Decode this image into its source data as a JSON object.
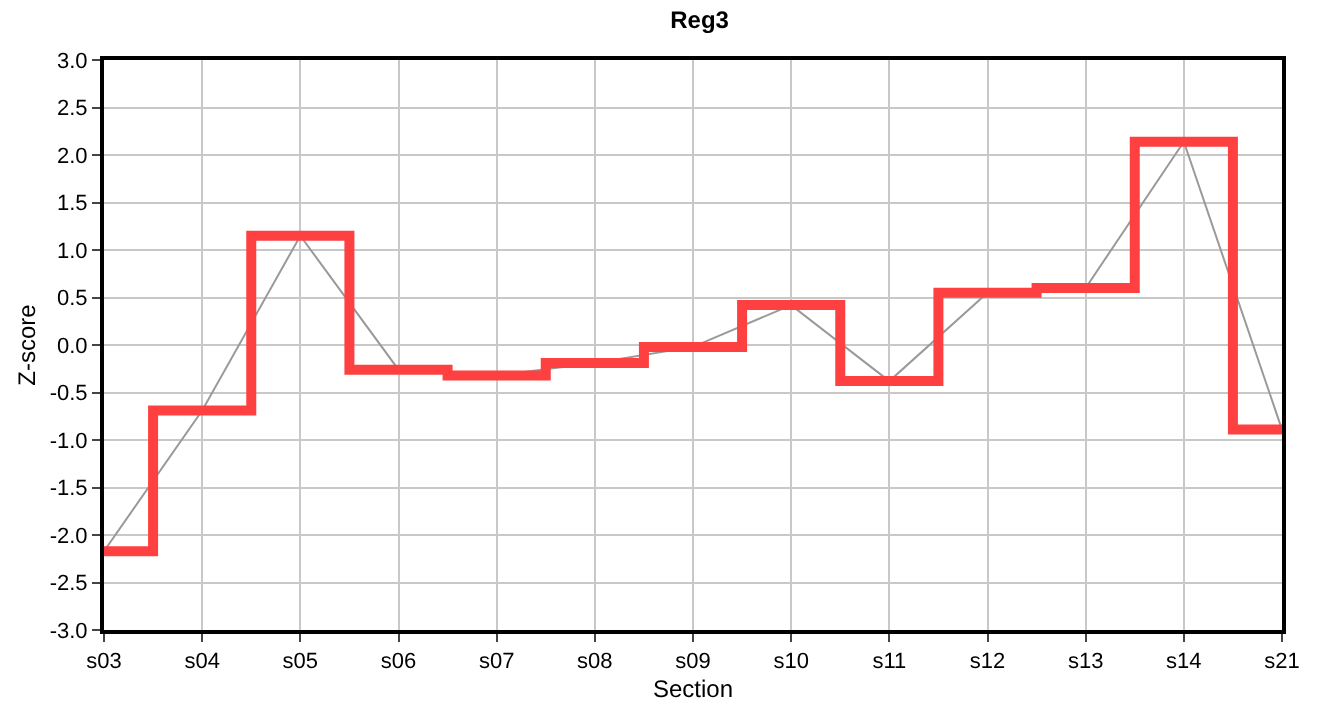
{
  "chart_data": {
    "type": "line",
    "title": "Reg3",
    "xlabel": "Section",
    "ylabel": "Z-score",
    "categories": [
      "s03",
      "s04",
      "s05",
      "s06",
      "s07",
      "s08",
      "s09",
      "s10",
      "s11",
      "s12",
      "s13",
      "s14",
      "s21"
    ],
    "series": [
      {
        "color": "#999999",
        "values": [
          -2.17,
          -0.69,
          1.15,
          -0.26,
          -0.32,
          -0.19,
          -0.02,
          0.42,
          -0.38,
          0.55,
          0.6,
          2.14,
          -0.89
        ]
      },
      {
        "type": "step",
        "color": "#ff4040",
        "values": [
          -2.17,
          -0.69,
          1.15,
          -0.26,
          -0.32,
          -0.19,
          -0.02,
          0.42,
          -0.38,
          0.55,
          0.6,
          2.14,
          -0.89
        ]
      }
    ],
    "ylim": [
      -3,
      3
    ],
    "yticks": [
      {
        "value": -3,
        "label": "-3.0"
      },
      {
        "value": -2.5,
        "label": "-2.5"
      },
      {
        "value": -2,
        "label": "-2.0"
      },
      {
        "value": -1.5,
        "label": "-1.5"
      },
      {
        "value": -1,
        "label": "-1.0"
      },
      {
        "value": -0.5,
        "label": "-0.5"
      },
      {
        "value": 0,
        "label": "0.0"
      },
      {
        "value": 0.5,
        "label": "0.5"
      },
      {
        "value": 1,
        "label": "1.0"
      },
      {
        "value": 1.5,
        "label": "1.5"
      },
      {
        "value": 2,
        "label": "2.0"
      },
      {
        "value": 2.5,
        "label": "2.5"
      },
      {
        "value": 3,
        "label": "3.0"
      }
    ],
    "grid": true
  }
}
